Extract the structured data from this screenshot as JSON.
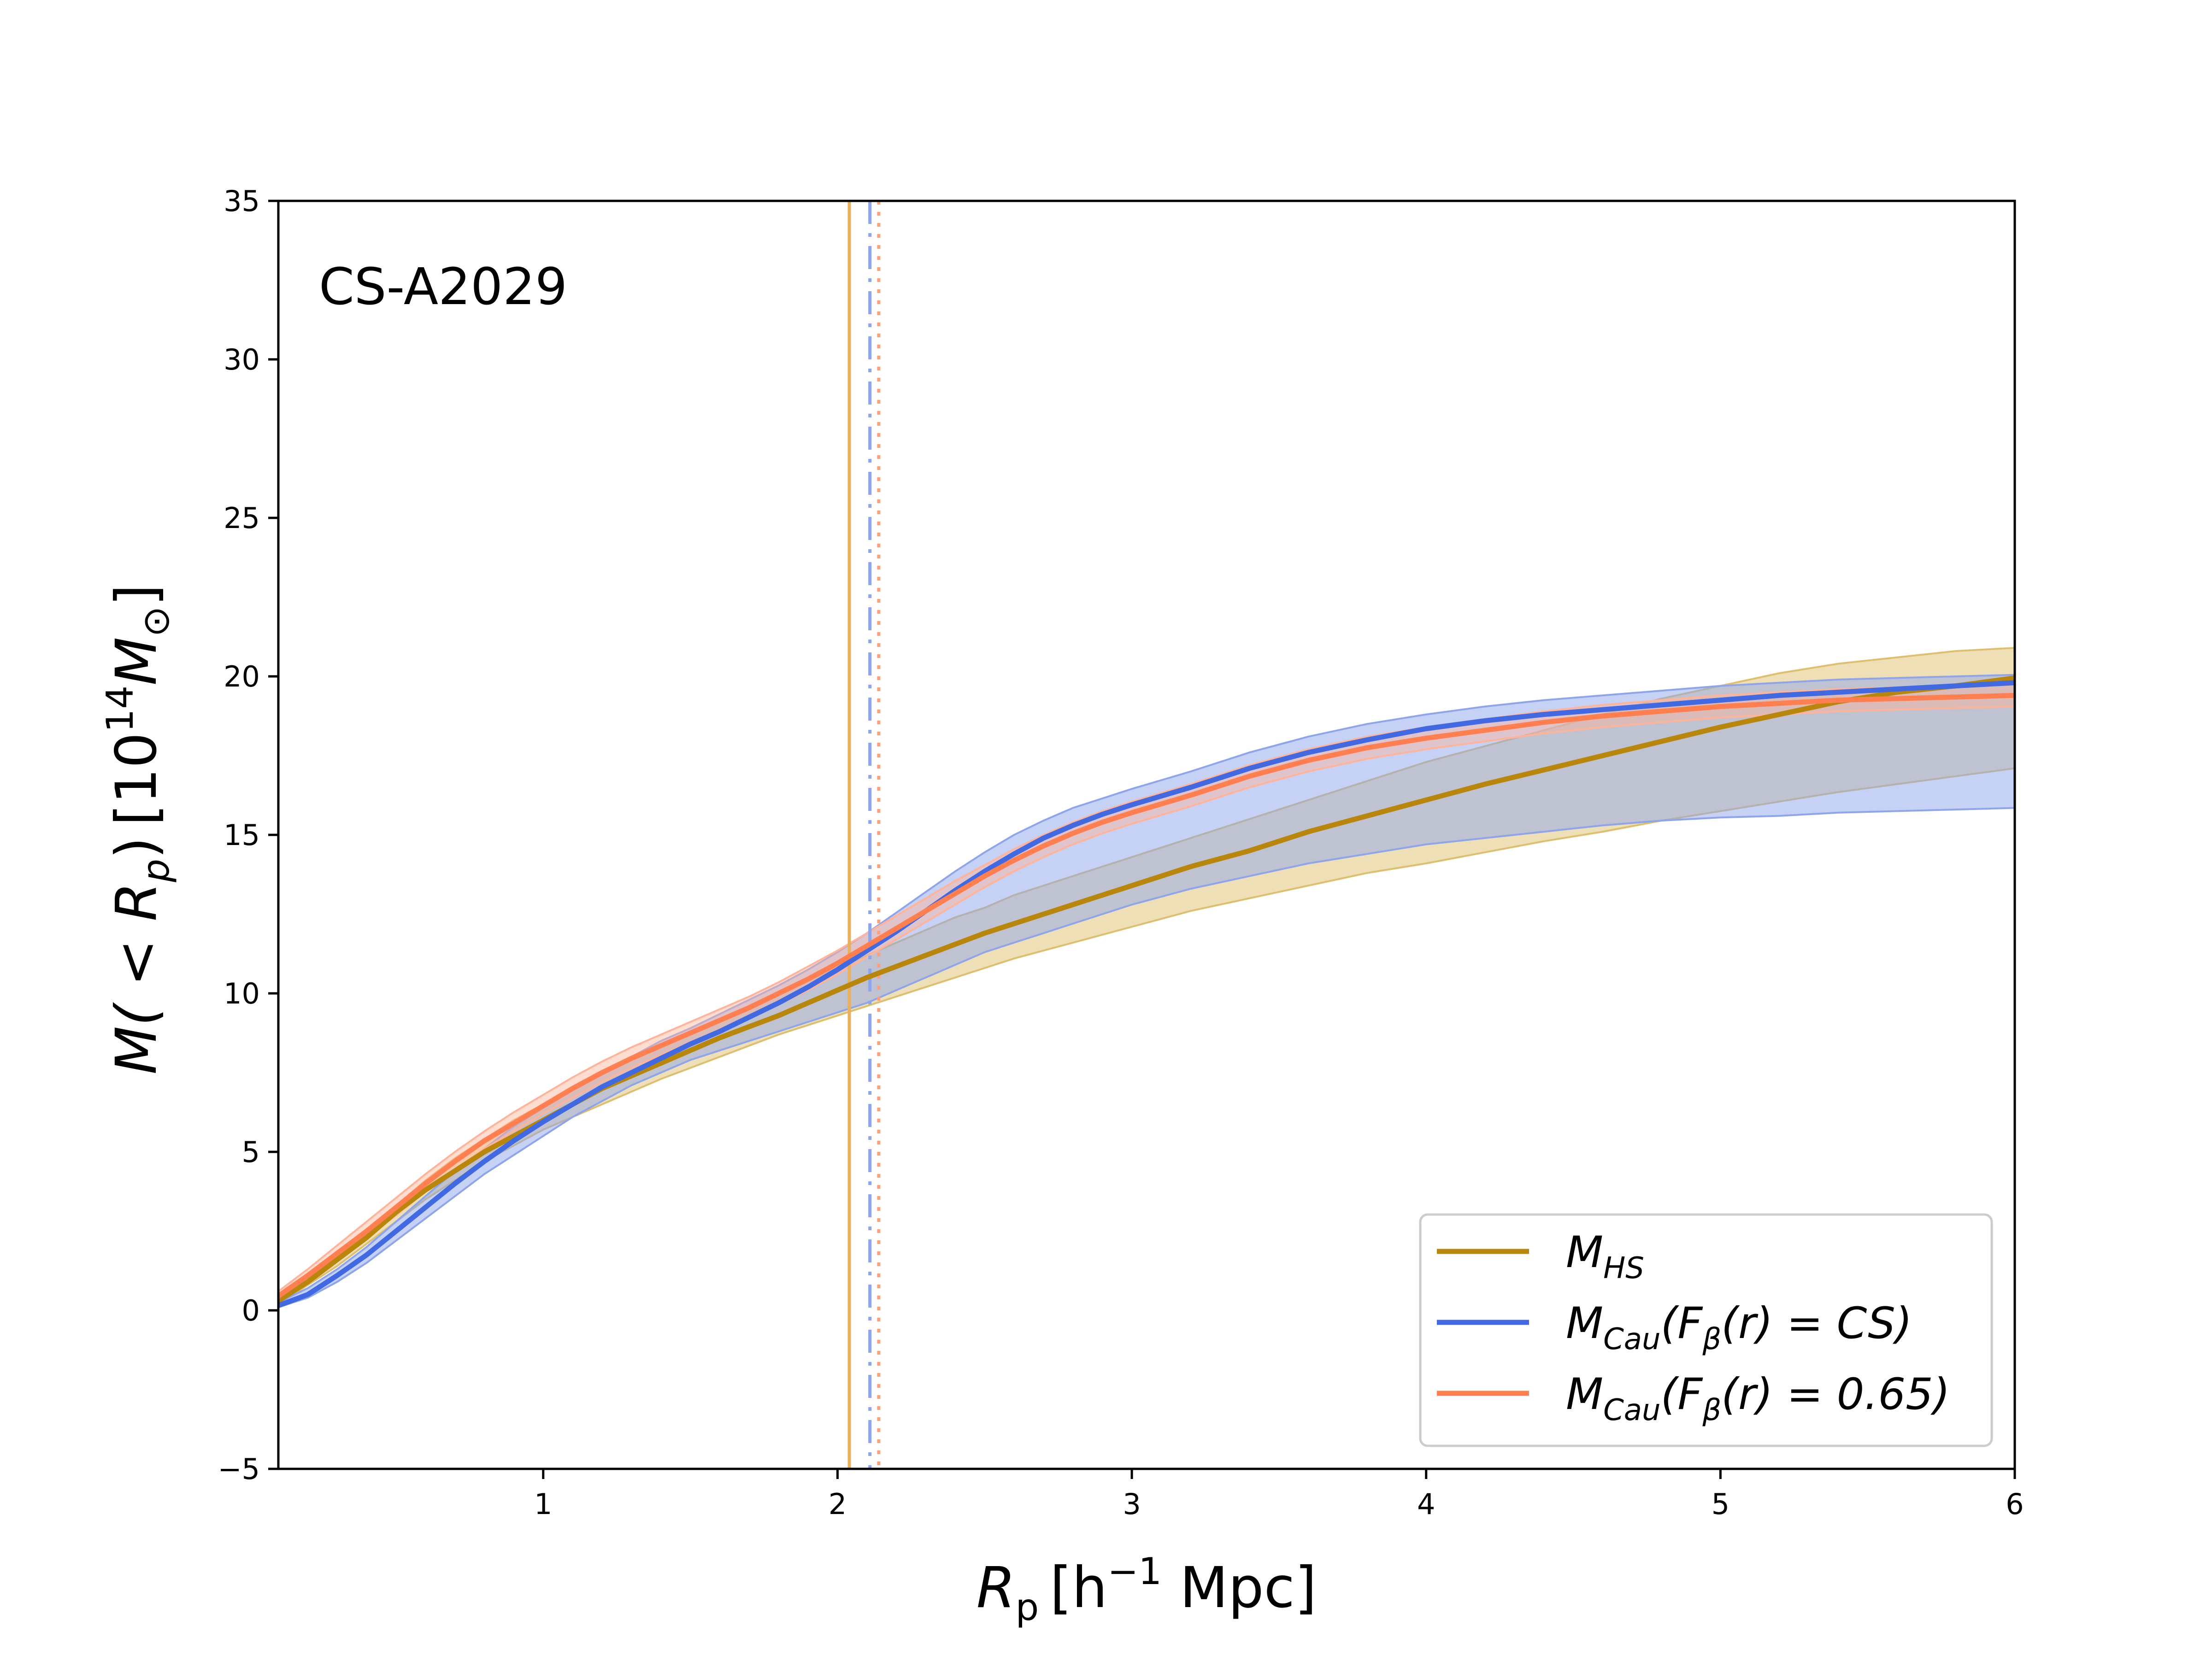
{
  "annotation": "CS-A2029",
  "xlabel": {
    "base": "R",
    "sub": "p",
    "unit_pre": "[h",
    "unit_sup": "−1",
    "unit_post": " Mpc]"
  },
  "ylabel": {
    "main": "M( < R",
    "sub": "p",
    "close": ")",
    "unit_pre": "[10",
    "unit_sup": "14",
    "unit_m": "M",
    "unit_msub": "⊙",
    "unit_post": "]"
  },
  "legend": [
    {
      "key": "hs",
      "color": "#b8860b",
      "text": "M",
      "sub": "HS",
      "rest": ""
    },
    {
      "key": "cs",
      "color": "#4169e1",
      "text": "M",
      "sub": "Cau",
      "rest": "(F",
      "sub2": "β",
      "rest2": "(r) = CS)"
    },
    {
      "key": "c65",
      "color": "#ff7f50",
      "text": "M",
      "sub": "Cau",
      "rest": "(F",
      "sub2": "β",
      "rest2": "(r) = 0.65)"
    }
  ],
  "chart_data": {
    "type": "line",
    "title": "",
    "xlim": [
      0.1,
      6
    ],
    "ylim": [
      -5,
      35
    ],
    "xticks": [
      1,
      2,
      3,
      4,
      5,
      6
    ],
    "xtick_labels": [
      "1",
      "2",
      "3",
      "4",
      "5",
      "6"
    ],
    "yticks": [
      -5,
      0,
      5,
      10,
      15,
      20,
      25,
      30,
      35
    ],
    "ytick_labels": [
      "−5",
      "0",
      "5",
      "10",
      "15",
      "20",
      "25",
      "30",
      "35"
    ],
    "grid": false,
    "legend_position": "lower-right",
    "colors": {
      "hs": "#b8860b",
      "cs": "#4169e1",
      "c65": "#ff7f50",
      "hs_band": "#ddbf6e",
      "cs_band": "#8ea5ec",
      "c65_band": "#ffb399"
    },
    "vlines": [
      {
        "x": 2.04,
        "color": "#e8b05a",
        "style": "solid"
      },
      {
        "x": 2.11,
        "color": "#8ea5ec",
        "style": "dashdot"
      },
      {
        "x": 2.14,
        "color": "#ffa07a",
        "style": "dotted"
      }
    ],
    "x": [
      0.1,
      0.2,
      0.3,
      0.4,
      0.5,
      0.6,
      0.7,
      0.8,
      0.9,
      1.0,
      1.1,
      1.2,
      1.3,
      1.4,
      1.5,
      1.6,
      1.7,
      1.8,
      1.9,
      2.0,
      2.1,
      2.2,
      2.3,
      2.4,
      2.5,
      2.6,
      2.7,
      2.8,
      2.9,
      3.0,
      3.2,
      3.4,
      3.6,
      3.8,
      4.0,
      4.2,
      4.4,
      4.6,
      4.8,
      5.0,
      5.2,
      5.4,
      5.6,
      5.8,
      6.0
    ],
    "series": [
      {
        "name": "M_HS",
        "values": [
          0.3,
          0.9,
          1.6,
          2.3,
          3.1,
          3.8,
          4.4,
          5.0,
          5.5,
          6.0,
          6.5,
          7.0,
          7.4,
          7.8,
          8.2,
          8.6,
          8.95,
          9.3,
          9.7,
          10.1,
          10.5,
          10.85,
          11.2,
          11.55,
          11.9,
          12.2,
          12.5,
          12.8,
          13.1,
          13.4,
          14.0,
          14.5,
          15.1,
          15.6,
          16.1,
          16.6,
          17.05,
          17.5,
          17.95,
          18.4,
          18.8,
          19.2,
          19.5,
          19.7,
          19.95
        ],
        "band_lo": [
          0.2,
          0.8,
          1.4,
          2.1,
          2.8,
          3.5,
          4.1,
          4.7,
          5.2,
          5.7,
          6.1,
          6.5,
          6.9,
          7.3,
          7.65,
          8.0,
          8.35,
          8.7,
          9.0,
          9.3,
          9.6,
          9.9,
          10.2,
          10.5,
          10.8,
          11.1,
          11.35,
          11.6,
          11.85,
          12.1,
          12.6,
          13.0,
          13.4,
          13.8,
          14.1,
          14.45,
          14.8,
          15.1,
          15.45,
          15.75,
          16.05,
          16.35,
          16.6,
          16.85,
          17.1
        ],
        "band_hi": [
          0.4,
          1.0,
          1.7,
          2.5,
          3.3,
          4.1,
          4.8,
          5.4,
          6.0,
          6.5,
          7.0,
          7.5,
          7.9,
          8.4,
          8.8,
          9.2,
          9.6,
          10.0,
          10.4,
          10.8,
          11.2,
          11.6,
          12.0,
          12.4,
          12.7,
          13.1,
          13.4,
          13.7,
          14.0,
          14.3,
          14.9,
          15.5,
          16.1,
          16.7,
          17.3,
          17.8,
          18.3,
          18.8,
          19.3,
          19.7,
          20.1,
          20.4,
          20.6,
          20.8,
          20.9
        ]
      },
      {
        "name": "M_Cau(F_β(r) = CS)",
        "values": [
          0.15,
          0.5,
          1.1,
          1.75,
          2.5,
          3.25,
          4.0,
          4.7,
          5.35,
          5.95,
          6.5,
          7.05,
          7.5,
          7.95,
          8.4,
          8.8,
          9.25,
          9.7,
          10.2,
          10.75,
          11.35,
          11.95,
          12.6,
          13.25,
          13.85,
          14.4,
          14.9,
          15.3,
          15.65,
          15.95,
          16.5,
          17.1,
          17.6,
          18.0,
          18.35,
          18.6,
          18.8,
          18.95,
          19.1,
          19.25,
          19.4,
          19.5,
          19.6,
          19.7,
          19.8
        ],
        "band_lo": [
          0.1,
          0.4,
          0.9,
          1.5,
          2.2,
          2.9,
          3.6,
          4.3,
          4.9,
          5.5,
          6.1,
          6.6,
          7.1,
          7.5,
          7.9,
          8.2,
          8.5,
          8.8,
          9.1,
          9.4,
          9.7,
          10.1,
          10.5,
          10.9,
          11.3,
          11.6,
          11.9,
          12.2,
          12.5,
          12.8,
          13.3,
          13.7,
          14.1,
          14.4,
          14.7,
          14.9,
          15.1,
          15.3,
          15.45,
          15.55,
          15.6,
          15.7,
          15.75,
          15.8,
          15.85
        ],
        "band_hi": [
          0.25,
          0.7,
          1.3,
          2.0,
          2.8,
          3.6,
          4.4,
          5.1,
          5.8,
          6.4,
          7.0,
          7.5,
          8.0,
          8.5,
          8.9,
          9.35,
          9.8,
          10.25,
          10.75,
          11.3,
          11.9,
          12.55,
          13.2,
          13.85,
          14.45,
          15.0,
          15.45,
          15.85,
          16.15,
          16.45,
          17.0,
          17.6,
          18.1,
          18.5,
          18.8,
          19.05,
          19.25,
          19.4,
          19.55,
          19.7,
          19.8,
          19.9,
          19.95,
          20.0,
          20.05
        ]
      },
      {
        "name": "M_Cau(F_β(r) = 0.65)",
        "values": [
          0.45,
          1.1,
          1.8,
          2.5,
          3.25,
          4.0,
          4.7,
          5.35,
          5.9,
          6.45,
          7.0,
          7.5,
          7.95,
          8.35,
          8.75,
          9.15,
          9.55,
          10.0,
          10.45,
          10.95,
          11.5,
          12.05,
          12.6,
          13.15,
          13.7,
          14.2,
          14.65,
          15.05,
          15.4,
          15.7,
          16.25,
          16.85,
          17.35,
          17.75,
          18.05,
          18.3,
          18.55,
          18.75,
          18.9,
          19.05,
          19.15,
          19.25,
          19.3,
          19.35,
          19.4
        ],
        "band_lo": [
          0.3,
          0.9,
          1.6,
          2.3,
          3.0,
          3.75,
          4.45,
          5.1,
          5.65,
          6.2,
          6.7,
          7.2,
          7.65,
          8.05,
          8.45,
          8.85,
          9.25,
          9.65,
          10.1,
          10.6,
          11.15,
          11.7,
          12.25,
          12.8,
          13.35,
          13.85,
          14.3,
          14.7,
          15.05,
          15.35,
          15.9,
          16.5,
          17.0,
          17.4,
          17.7,
          17.95,
          18.2,
          18.4,
          18.55,
          18.7,
          18.8,
          18.9,
          18.95,
          19.0,
          19.05
        ],
        "band_hi": [
          0.6,
          1.3,
          2.05,
          2.8,
          3.55,
          4.3,
          5.0,
          5.65,
          6.25,
          6.8,
          7.35,
          7.85,
          8.3,
          8.7,
          9.1,
          9.5,
          9.9,
          10.35,
          10.85,
          11.35,
          11.9,
          12.45,
          13.0,
          13.55,
          14.05,
          14.55,
          15.0,
          15.4,
          15.75,
          16.05,
          16.6,
          17.2,
          17.7,
          18.1,
          18.4,
          18.65,
          18.9,
          19.1,
          19.25,
          19.4,
          19.5,
          19.6,
          19.65,
          19.7,
          19.75
        ]
      }
    ]
  }
}
